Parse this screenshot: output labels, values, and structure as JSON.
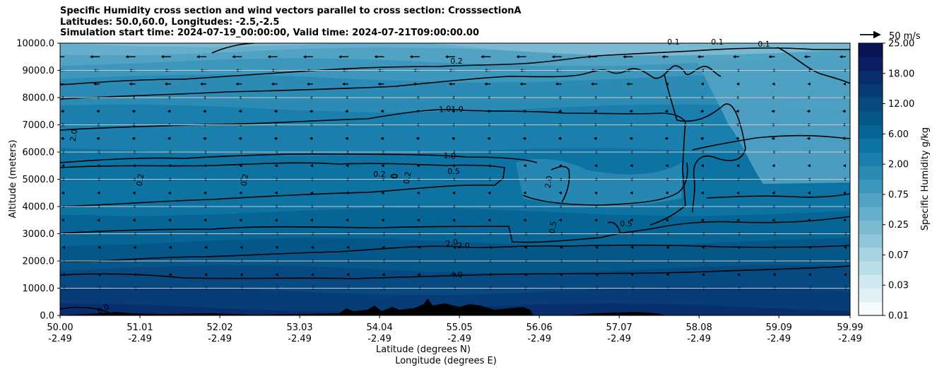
{
  "title": {
    "line1": "Specific Humidity cross section and wind vectors parallel to cross section: CrosssectionA",
    "line2": "Latitudes: 50.0,60.0, Longitudes: -2.5,-2.5",
    "line3": "Simulation start time: 2024-07-19_00:00:00, Valid time: 2024-07-21T09:00:00.00"
  },
  "chart_data": {
    "type": "contourf",
    "ylabel": "Altitude (meters)",
    "xlabel_lat": "Latitude (degrees N)",
    "xlabel_lon": "Longitude (degrees E)",
    "ylim": [
      0,
      10000
    ],
    "xlim": [
      50.0,
      59.99
    ],
    "y_ticks": [
      "0.0",
      "1000.0",
      "2000.0",
      "3000.0",
      "4000.0",
      "5000.0",
      "6000.0",
      "7000.0",
      "8000.0",
      "9000.0",
      "10000.0"
    ],
    "y_tick_values": [
      0,
      1000,
      2000,
      3000,
      4000,
      5000,
      6000,
      7000,
      8000,
      9000,
      10000
    ],
    "x_tick_values": [
      50.0,
      51.01,
      52.02,
      53.03,
      54.04,
      55.05,
      56.06,
      57.07,
      58.08,
      59.09,
      59.99
    ],
    "x_ticks_lat": [
      "50.00",
      "51.01",
      "52.02",
      "53.03",
      "54.04",
      "55.05",
      "56.06",
      "57.07",
      "58.08",
      "59.09",
      "59.99"
    ],
    "x_ticks_lon": [
      "-2.49",
      "-2.49",
      "-2.49",
      "-2.49",
      "-2.49",
      "-2.49",
      "-2.49",
      "-2.49",
      "-2.49",
      "-2.49",
      "-2.49"
    ],
    "grid": "horizontal",
    "colorbar": {
      "label": "Specific Humidity g/kg",
      "tick_labels": [
        "0.01",
        "0.03",
        "0.07",
        "0.25",
        "0.75",
        "2.00",
        "6.00",
        "12.00",
        "18.00",
        "25.00"
      ],
      "levels": [
        "0.01",
        "0.02",
        "0.03",
        "0.05",
        "0.07",
        "0.1",
        "0.25",
        "0.5",
        "0.75",
        "1",
        "2",
        "4",
        "6",
        "8",
        "12",
        "15",
        "18",
        "20",
        "25"
      ],
      "colors": [
        "#f7fbfd",
        "#e2f0f4",
        "#d0e8ef",
        "#bbdde8",
        "#a6d2e1",
        "#91c6da",
        "#7cbad2",
        "#66aecb",
        "#51a2c3",
        "#3d97bc",
        "#2b8bb5",
        "#1a7fac",
        "#0c73a3",
        "#066594",
        "#05578a",
        "#064a81",
        "#073c77",
        "#082e6e",
        "#0a1f63",
        "#0a1454"
      ]
    },
    "contour_labels": [
      "8.0",
      "4.0",
      "2.0",
      "2.0",
      "2.0",
      "1.0",
      "1.0",
      "1.0",
      "0.5",
      "0.5",
      "0.5",
      "0.2",
      "0.2",
      "0.2",
      "0.2",
      "0.2",
      "2.0",
      "0.1",
      "0.1",
      "0.1"
    ],
    "wind_reference": "50 m/s",
    "wind_direction": "northward_component_negative_upper_levels"
  },
  "colors": {
    "contour": "#000000",
    "terrain": "#000000",
    "grid": "#c8c8c8"
  }
}
